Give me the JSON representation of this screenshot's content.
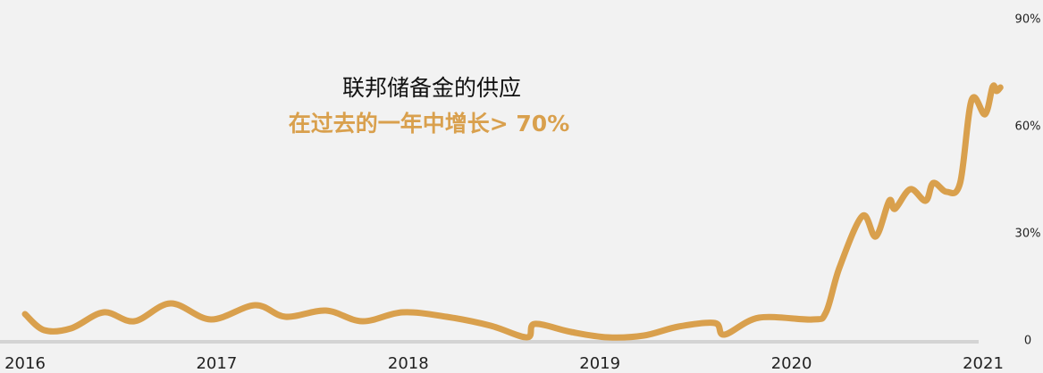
{
  "chart_data": {
    "type": "line",
    "title": "联邦储备金的供应",
    "subtitle": "在过去的一年中增长> 70%",
    "x": [
      2016.0,
      2016.1,
      2016.24,
      2016.41,
      2016.57,
      2016.76,
      2016.97,
      2017.2,
      2017.36,
      2017.57,
      2017.76,
      2017.97,
      2018.2,
      2018.43,
      2018.62,
      2018.66,
      2018.85,
      2019.04,
      2019.23,
      2019.41,
      2019.6,
      2019.65,
      2019.83,
      2020.11,
      2020.18,
      2020.25,
      2020.37,
      2020.44,
      2020.51,
      2020.54,
      2020.62,
      2020.7,
      2020.74,
      2020.81,
      2020.88,
      2020.94,
      2021.01,
      2021.05,
      2021.07,
      2021.09
    ],
    "series": [
      {
        "name": "联邦储备金的供应",
        "color": "#d9a04d",
        "values": [
          7.5,
          3,
          3.5,
          8,
          5.5,
          10.5,
          6,
          10,
          6.75,
          8.5,
          5.5,
          8,
          6.75,
          4.25,
          1,
          4.75,
          2.5,
          1,
          1.5,
          4,
          5,
          1.75,
          6.5,
          6,
          8,
          20.5,
          35,
          29.25,
          39.25,
          37,
          42.5,
          39.25,
          44.25,
          41.75,
          44.25,
          67.5,
          63.5,
          71.25,
          70,
          71
        ]
      }
    ],
    "xlim": [
      2016,
      2021
    ],
    "xticks": [
      2016,
      2017,
      2018,
      2019,
      2020,
      2021
    ],
    "ylim": [
      0,
      90
    ],
    "yticks": [
      0,
      {
        "value": 30,
        "label": "30%"
      },
      {
        "value": 60,
        "label": "60%"
      },
      {
        "value": 90,
        "label": "90%"
      }
    ],
    "grid": false
  }
}
